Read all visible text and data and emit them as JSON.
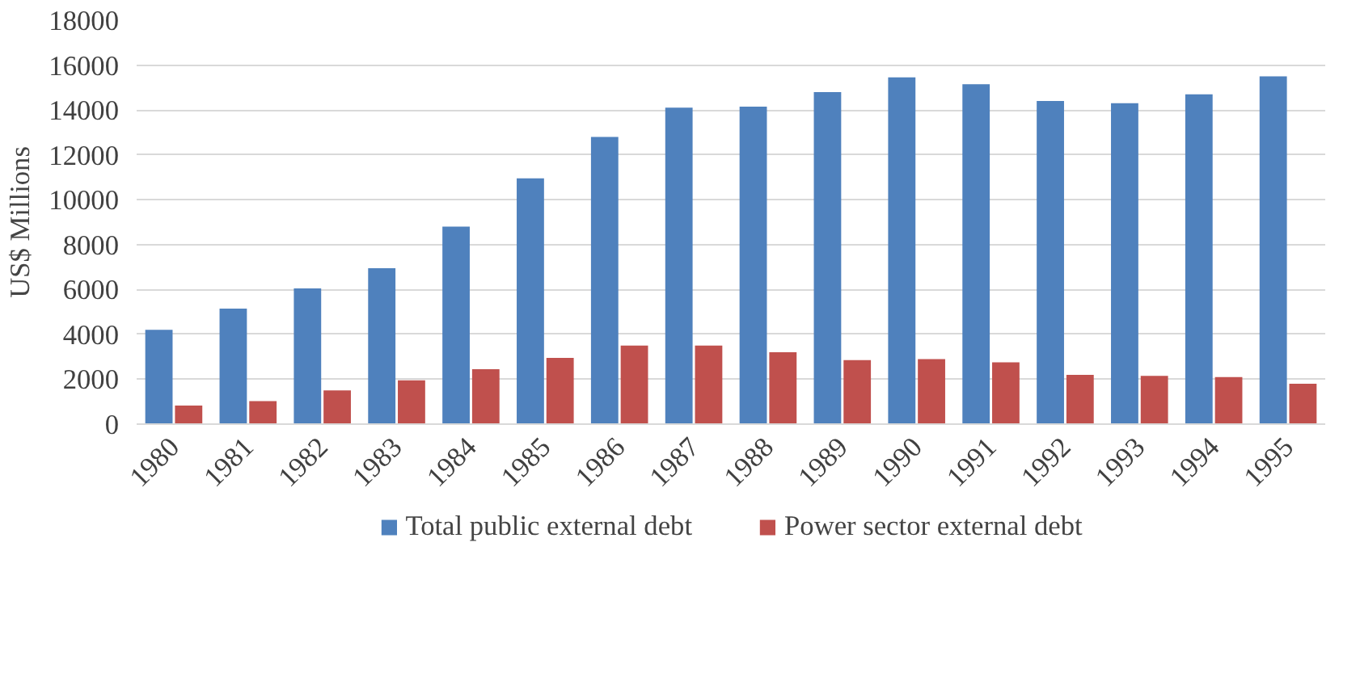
{
  "chart_data": {
    "type": "bar",
    "ylabel": "US$ Millions",
    "categories": [
      "1980",
      "1981",
      "1982",
      "1983",
      "1984",
      "1985",
      "1986",
      "1987",
      "1988",
      "1989",
      "1990",
      "1991",
      "1992",
      "1993",
      "1994",
      "1995"
    ],
    "series": [
      {
        "name": "Total public external debt",
        "color": "#4f81bd",
        "values": [
          4200,
          5150,
          6050,
          6950,
          8800,
          10950,
          12800,
          14100,
          14150,
          14800,
          15450,
          15150,
          14400,
          14300,
          14700,
          15500
        ]
      },
      {
        "name": "Power sector external debt",
        "color": "#c0504d",
        "values": [
          830,
          1030,
          1500,
          1950,
          2450,
          2950,
          3500,
          3500,
          3200,
          2850,
          2900,
          2750,
          2200,
          2150,
          2100,
          1800
        ]
      }
    ],
    "ylim": [
      0,
      18000
    ],
    "yticks": [
      0,
      2000,
      4000,
      6000,
      8000,
      10000,
      12000,
      14000,
      16000,
      18000
    ],
    "grid": "y",
    "legend": "bottom"
  }
}
